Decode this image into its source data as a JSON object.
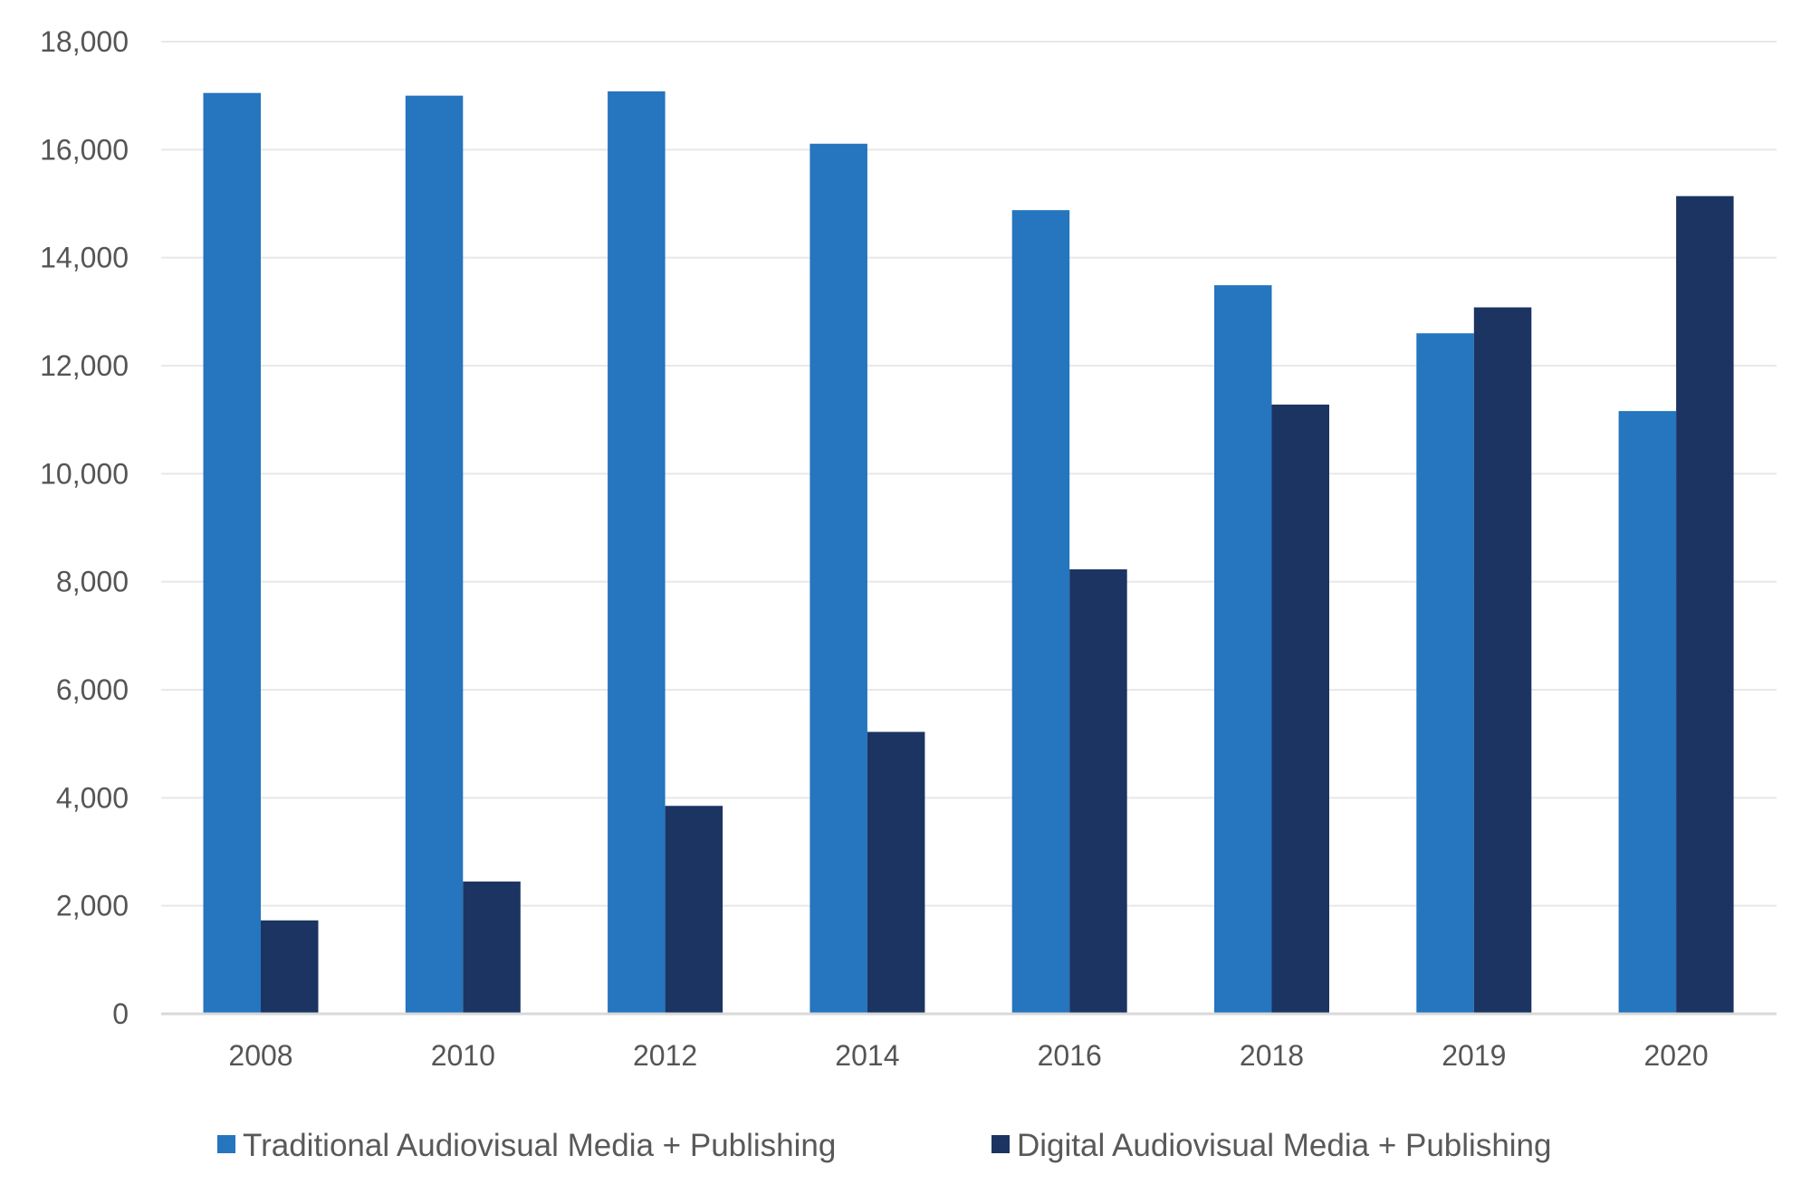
{
  "chart_data": {
    "type": "bar",
    "title": "",
    "xlabel": "",
    "ylabel": "",
    "categories": [
      "2008",
      "2010",
      "2012",
      "2014",
      "2016",
      "2018",
      "2019",
      "2020"
    ],
    "series": [
      {
        "name": "Traditional Audiovisual Media + Publishing",
        "color": "#2575bf",
        "values": [
          17050,
          17000,
          17080,
          16110,
          14880,
          13490,
          12600,
          11160
        ]
      },
      {
        "name": "Digital Audiovisual Media + Publishing",
        "color": "#1c3462",
        "values": [
          1730,
          2450,
          3850,
          5220,
          8230,
          11280,
          13080,
          15140
        ]
      }
    ],
    "ylim": [
      0,
      18000
    ],
    "yticks": [
      "0",
      "2,000",
      "4,000",
      "6,000",
      "8,000",
      "10,000",
      "12,000",
      "14,000",
      "16,000",
      "18,000"
    ],
    "grid": true,
    "legend_position": "bottom"
  }
}
